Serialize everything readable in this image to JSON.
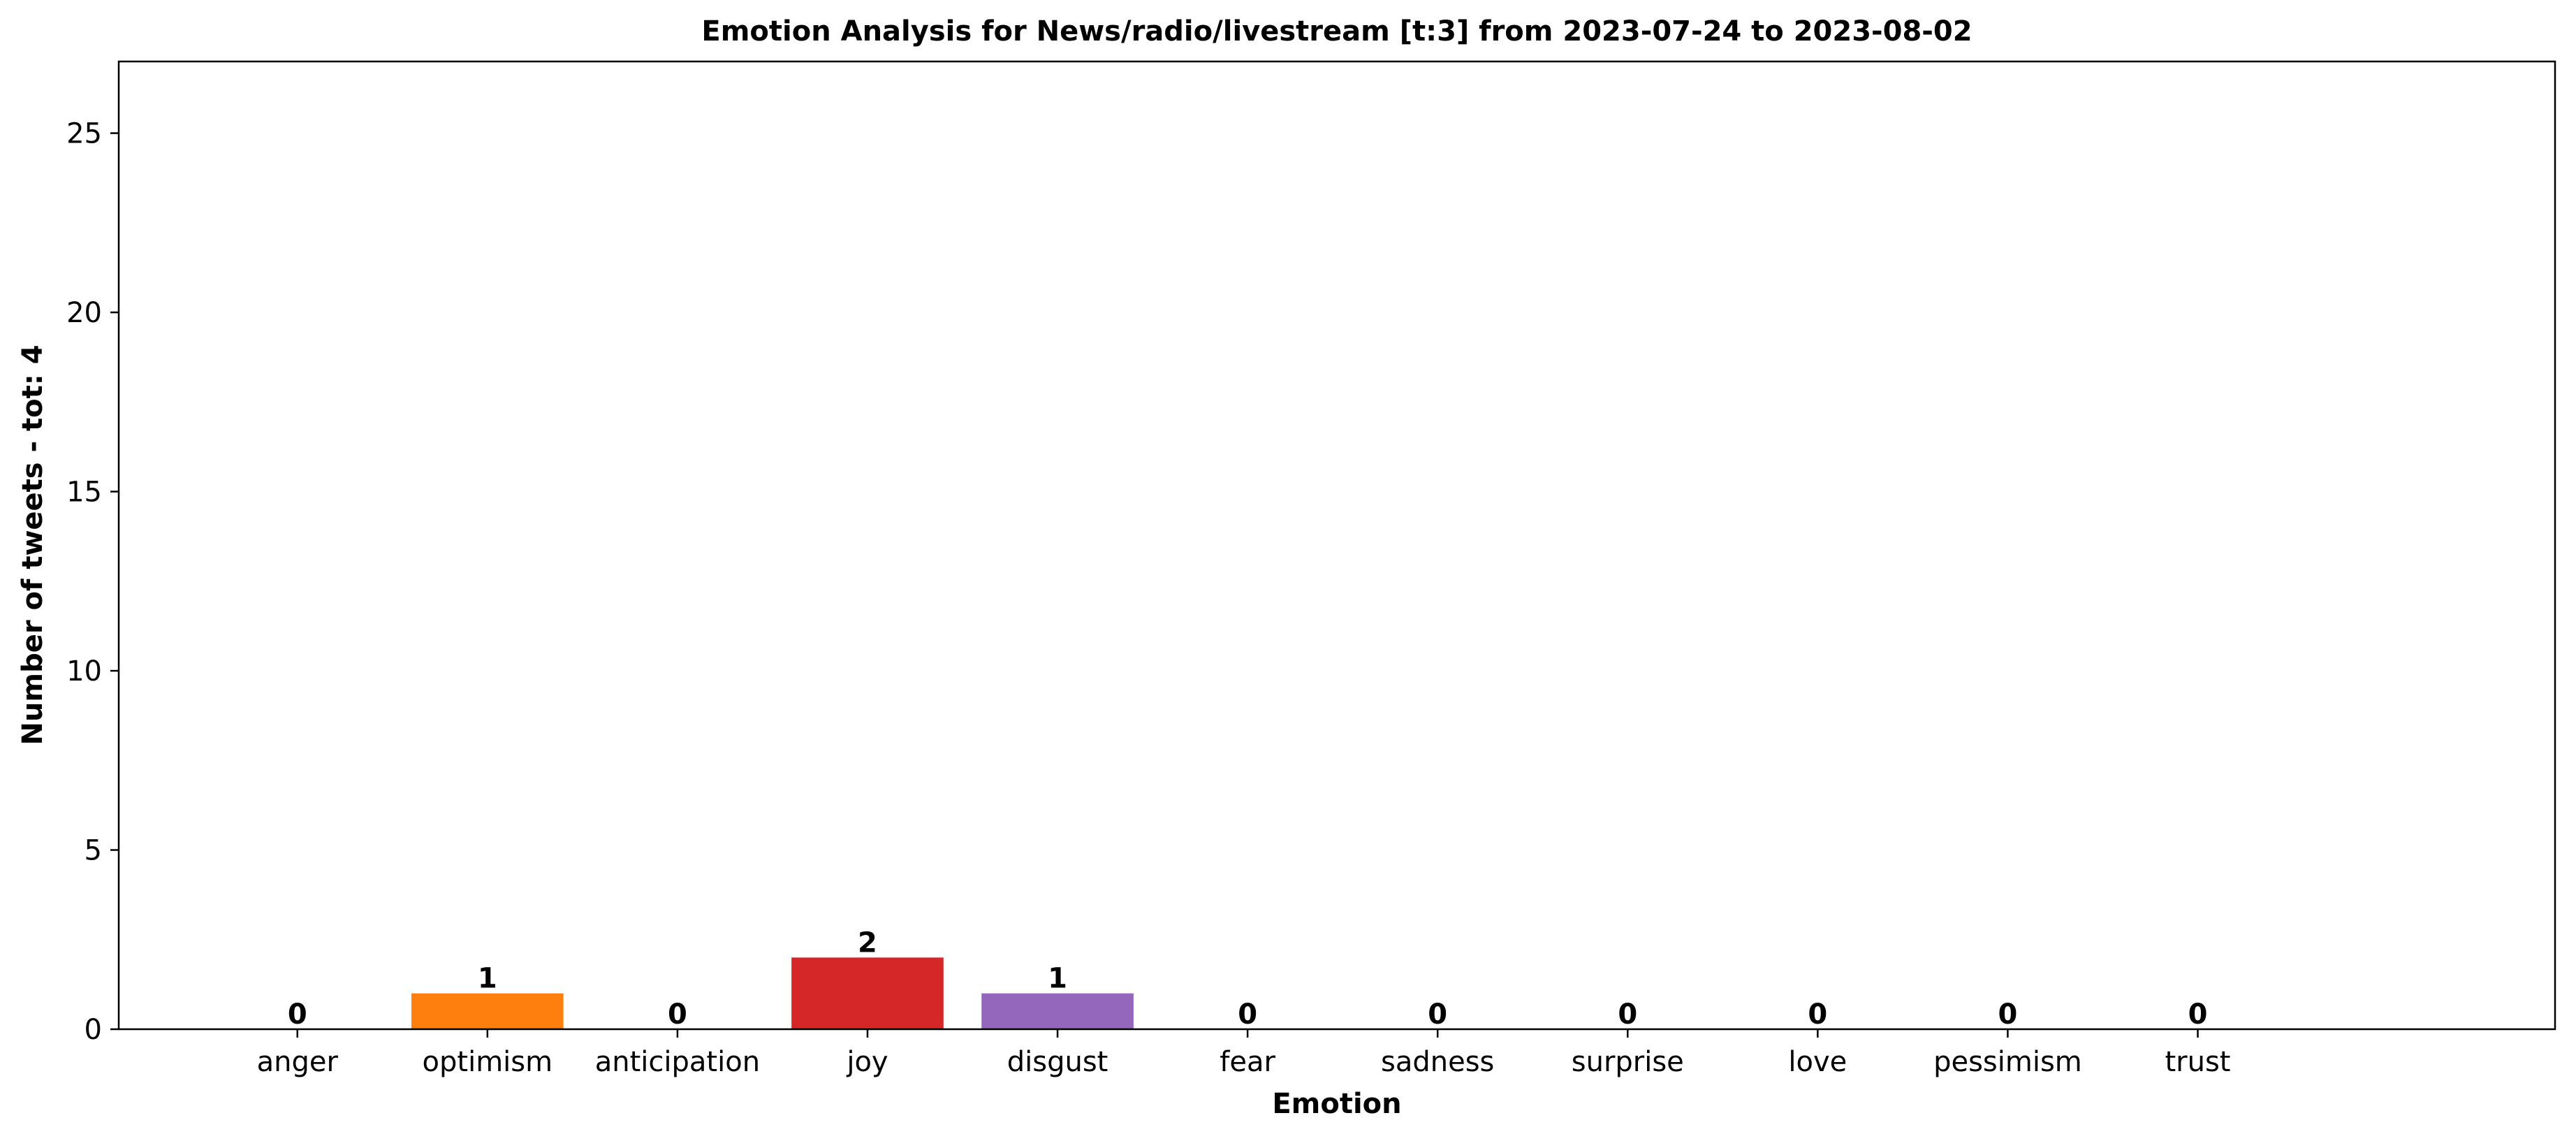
{
  "chart_data": {
    "type": "bar",
    "title": "Emotion Analysis for News/radio/livestream [t:3] from 2023-07-24 to 2023-08-02",
    "xlabel": "Emotion",
    "ylabel": "Number of tweets - tot: 4",
    "categories": [
      "anger",
      "optimism",
      "anticipation",
      "joy",
      "disgust",
      "fear",
      "sadness",
      "surprise",
      "love",
      "pessimism",
      "trust"
    ],
    "values": [
      0,
      1,
      0,
      2,
      1,
      0,
      0,
      0,
      0,
      0,
      0
    ],
    "data_labels": [
      "0",
      "1",
      "0",
      "2",
      "1",
      "0",
      "0",
      "0",
      "0",
      "0",
      "0"
    ],
    "colors": [
      "#1f77b4",
      "#ff7f0e",
      "#2ca02c",
      "#d62728",
      "#9467bd",
      "#8c564b",
      "#e377c2",
      "#7f7f7f",
      "#bcbd22",
      "#17becf",
      "#1f77b4"
    ],
    "ylim": [
      0,
      27
    ],
    "yticks": [
      0,
      5,
      10,
      15,
      20,
      25
    ],
    "ytick_labels": [
      "0",
      "5",
      "10",
      "15",
      "20",
      "25"
    ],
    "grid": false,
    "legend": "none"
  }
}
